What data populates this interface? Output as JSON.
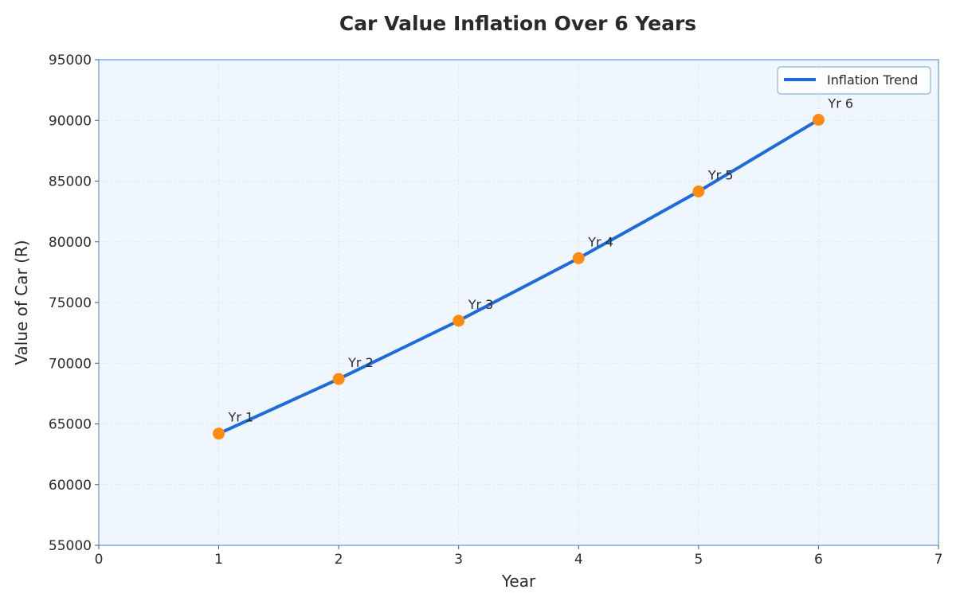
{
  "chart_data": {
    "type": "line",
    "title": "Car Value Inflation Over 6 Years",
    "xlabel": "Year",
    "ylabel": "Value of Car (R)",
    "xlim": [
      0,
      7
    ],
    "ylim": [
      55000,
      95000
    ],
    "x_ticks": [
      "0",
      "1",
      "2",
      "3",
      "4",
      "5",
      "6",
      "7"
    ],
    "y_ticks": [
      "55000",
      "60000",
      "65000",
      "70000",
      "75000",
      "80000",
      "85000",
      "90000",
      "95000"
    ],
    "grid": true,
    "legend_position": "top-right",
    "series": [
      {
        "name": "Inflation Trend",
        "color": "#1a6ae3",
        "marker_color": "#ff8c0f",
        "x": [
          1,
          2,
          3,
          4,
          5,
          6
        ],
        "y": [
          64200,
          68700,
          73500,
          78650,
          84150,
          90050
        ],
        "point_labels": [
          "Yr 1",
          "Yr 2",
          "Yr 3",
          "Yr 4",
          "Yr 5",
          "Yr 6"
        ]
      }
    ],
    "plot_background": "#f0f6fd",
    "frame_color": "#9cbff0"
  }
}
